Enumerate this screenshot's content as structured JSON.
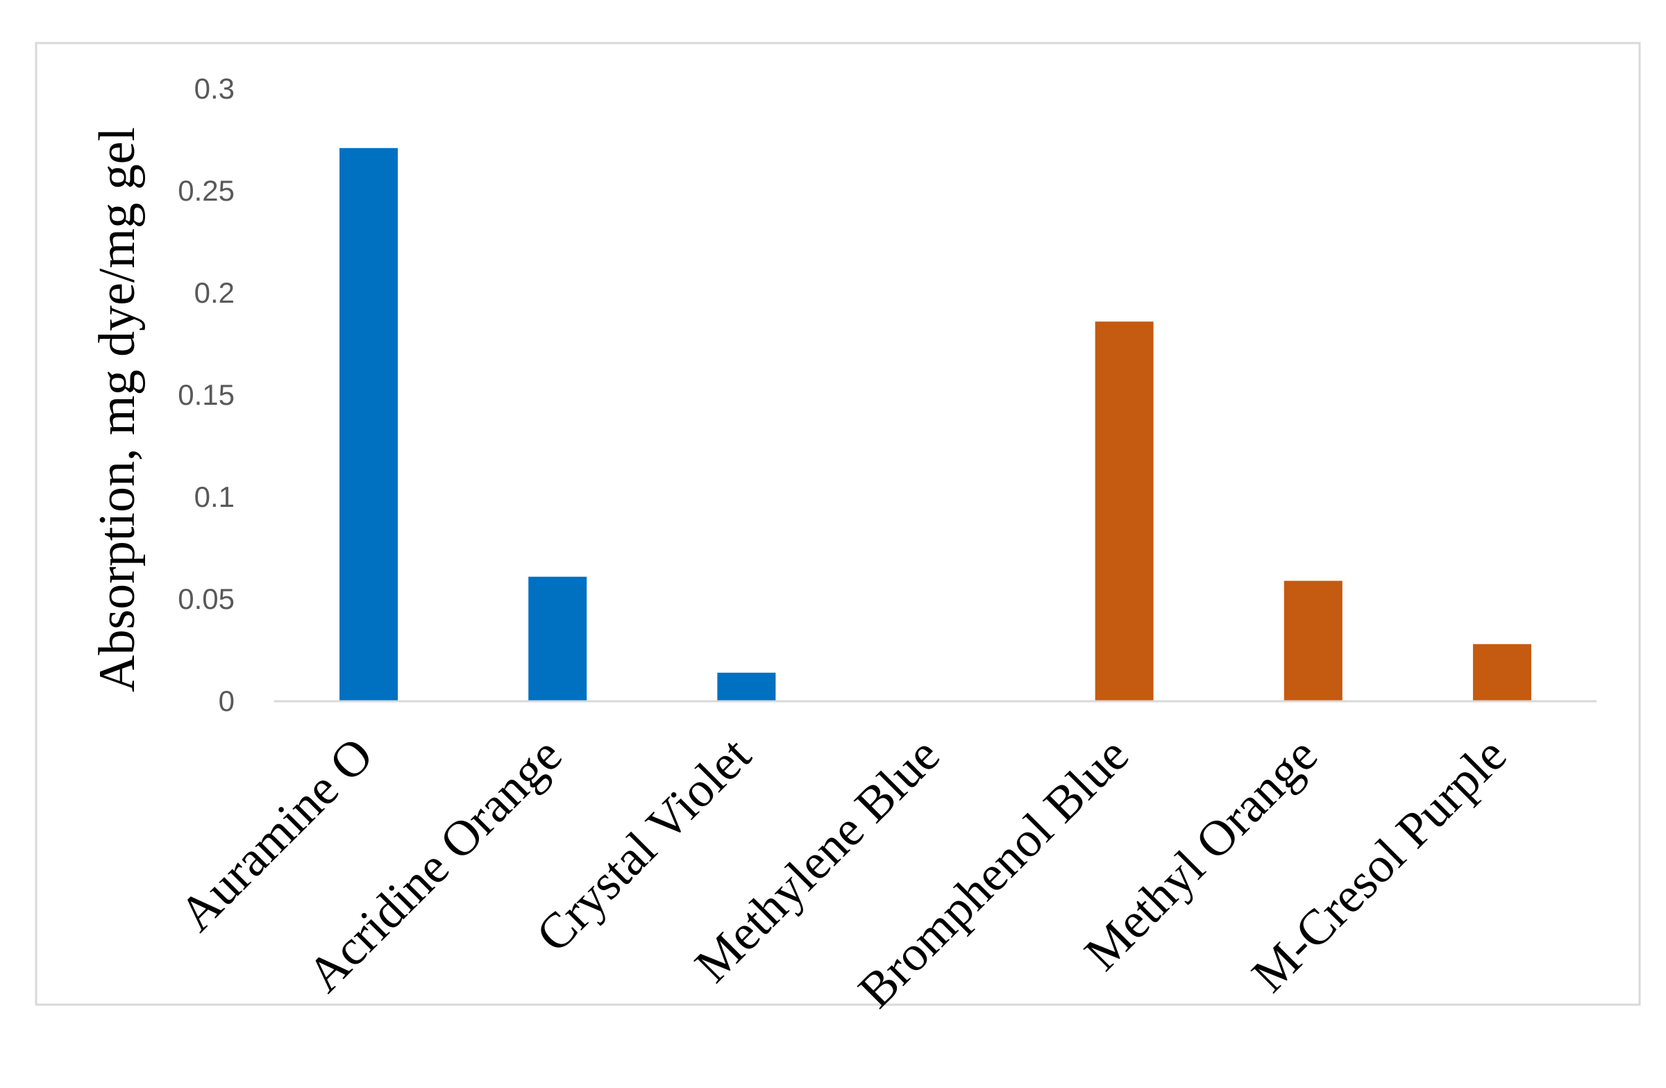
{
  "chart_data": {
    "type": "bar",
    "title": "",
    "xlabel": "",
    "ylabel": "Absorption,   mg dye/mg gel",
    "ylim": [
      0,
      0.3
    ],
    "yticks": [
      "0",
      "0.05",
      "0.1",
      "0.15",
      "0.2",
      "0.25",
      "0.3"
    ],
    "grid": false,
    "legend": "none",
    "categories": [
      "Auramine O",
      "Acridine Orange",
      "Crystal Violet",
      "Methylene Blue",
      "Bromphenol Blue",
      "Methyl Orange",
      "M-Cresol Purple"
    ],
    "values": [
      0.271,
      0.061,
      0.014,
      0,
      0.186,
      0.059,
      0.028
    ],
    "colors": [
      "#0070C0",
      "#0070C0",
      "#0070C0",
      "#0070C0",
      "#C55A11",
      "#C55A11",
      "#C55A11"
    ]
  }
}
